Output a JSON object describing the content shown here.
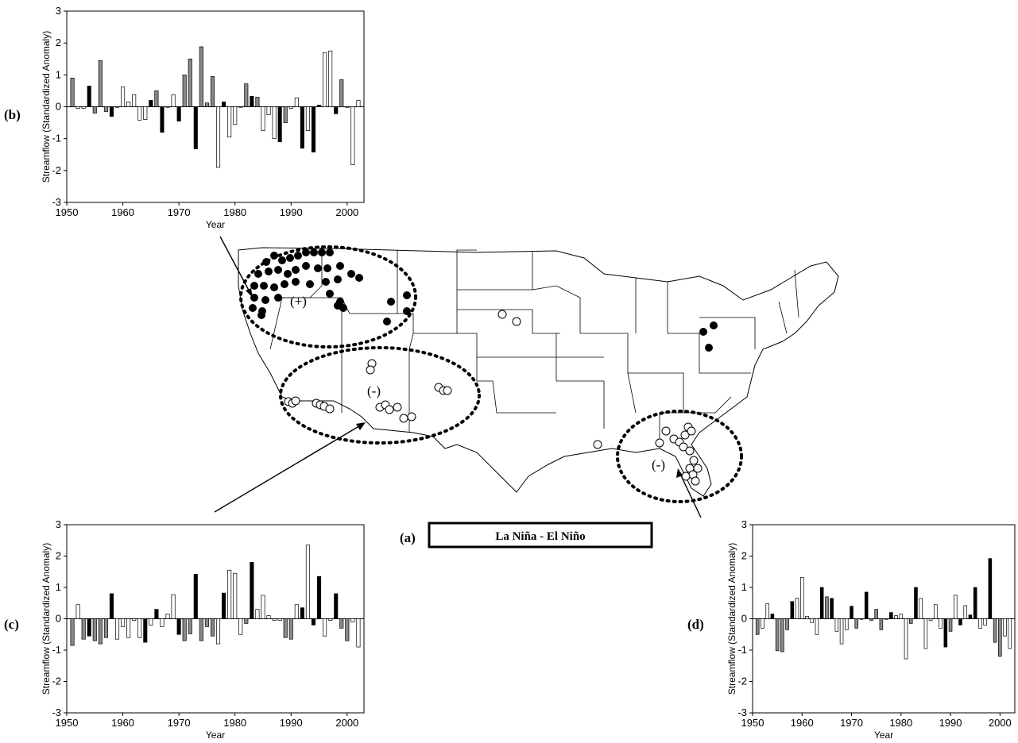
{
  "figure": {
    "legend_box_label": "La Niña - El Niño",
    "panel_a_label": "(a)",
    "region_nw_label": "(+)",
    "region_sw_label": "(-)",
    "region_se_label": "(-)",
    "colors": {
      "black_bar": "#000000",
      "gray_bar": "#8a8a8a",
      "white_bar": "#ffffff",
      "dots": "#000000"
    },
    "stations_note": ""
  },
  "chart_data": [
    {
      "type": "bar",
      "panel_label": "(b)",
      "xlabel": "Year",
      "ylabel": "Streamflow (Standardized Anomaly)",
      "xlim": [
        1950,
        2003
      ],
      "ylim": [
        -3,
        3
      ],
      "xticks": [
        1950,
        1960,
        1970,
        1980,
        1990,
        2000
      ],
      "yticks": [
        -3,
        -2,
        -1,
        0,
        1,
        2,
        3
      ],
      "series": [
        {
          "name": "",
          "x": [
            1951,
            1952,
            1953,
            1954,
            1955,
            1956,
            1957,
            1958,
            1959,
            1960,
            1961,
            1962,
            1963,
            1964,
            1965,
            1966,
            1967,
            1968,
            1969,
            1970,
            1971,
            1972,
            1973,
            1974,
            1975,
            1976,
            1977,
            1978,
            1979,
            1980,
            1981,
            1982,
            1983,
            1984,
            1985,
            1986,
            1987,
            1988,
            1989,
            1990,
            1991,
            1992,
            1993,
            1994,
            1995,
            1996,
            1997,
            1998,
            1999,
            2000,
            2001,
            2002
          ],
          "values": [
            0.9,
            -0.05,
            -0.05,
            0.65,
            -0.2,
            1.45,
            -0.15,
            -0.3,
            0,
            0.62,
            0.15,
            0.38,
            -0.42,
            -0.4,
            0.2,
            0.5,
            -0.8,
            0,
            0.38,
            -0.45,
            1.0,
            1.5,
            -1.32,
            1.88,
            0.12,
            0.95,
            -1.9,
            0.15,
            -0.95,
            -0.55,
            0,
            0.72,
            0.33,
            0.3,
            -0.75,
            -0.25,
            -1.0,
            -1.1,
            -0.5,
            -0.05,
            0.28,
            -1.3,
            -0.75,
            -1.42,
            0.05,
            1.7,
            1.75,
            -0.22,
            0.85,
            0,
            -1.82,
            0.2
          ],
          "fills": [
            "g",
            "w",
            "w",
            "b",
            "g",
            "g",
            "g",
            "b",
            "w",
            "w",
            "w",
            "w",
            "w",
            "w",
            "b",
            "g",
            "b",
            "w",
            "w",
            "b",
            "g",
            "g",
            "b",
            "g",
            "g",
            "g",
            "w",
            "b",
            "w",
            "w",
            "w",
            "g",
            "b",
            "g",
            "w",
            "w",
            "w",
            "b",
            "g",
            "w",
            "w",
            "b",
            "w",
            "b",
            "b",
            "w",
            "w",
            "b",
            "g",
            "w",
            "w",
            "w"
          ]
        }
      ]
    },
    {
      "type": "bar",
      "panel_label": "(c)",
      "xlabel": "Year",
      "ylabel": "Streamflow (Standardized Anomaly)",
      "xlim": [
        1950,
        2003
      ],
      "ylim": [
        -3,
        3
      ],
      "xticks": [
        1950,
        1960,
        1970,
        1980,
        1990,
        2000
      ],
      "yticks": [
        -3,
        -2,
        -1,
        0,
        1,
        2,
        3
      ],
      "series": [
        {
          "name": "",
          "x": [
            1951,
            1952,
            1953,
            1954,
            1955,
            1956,
            1957,
            1958,
            1959,
            1960,
            1961,
            1962,
            1963,
            1964,
            1965,
            1966,
            1967,
            1968,
            1969,
            1970,
            1971,
            1972,
            1973,
            1974,
            1975,
            1976,
            1977,
            1978,
            1979,
            1980,
            1981,
            1982,
            1983,
            1984,
            1985,
            1986,
            1987,
            1988,
            1989,
            1990,
            1991,
            1992,
            1993,
            1994,
            1995,
            1996,
            1997,
            1998,
            1999,
            2000,
            2001,
            2002
          ],
          "values": [
            -0.85,
            0.45,
            -0.65,
            -0.55,
            -0.7,
            -0.8,
            -0.6,
            0.8,
            -0.65,
            -0.25,
            -0.6,
            -0.05,
            -0.6,
            -0.75,
            -0.2,
            0.3,
            -0.25,
            0.15,
            0.77,
            -0.5,
            -0.7,
            -0.48,
            1.42,
            -0.7,
            -0.25,
            -0.55,
            -0.8,
            0.82,
            1.55,
            1.45,
            -0.5,
            -0.15,
            1.8,
            0.3,
            0.75,
            0.1,
            -0.05,
            -0.05,
            -0.6,
            -0.65,
            0.45,
            0.35,
            2.35,
            -0.2,
            1.35,
            -0.55,
            -0.05,
            0.8,
            -0.3,
            -0.7,
            -0.1,
            -0.9
          ],
          "fills": [
            "g",
            "w",
            "g",
            "b",
            "g",
            "g",
            "g",
            "b",
            "w",
            "w",
            "w",
            "w",
            "w",
            "b",
            "w",
            "b",
            "w",
            "w",
            "w",
            "b",
            "g",
            "g",
            "b",
            "g",
            "g",
            "g",
            "w",
            "b",
            "w",
            "w",
            "w",
            "g",
            "b",
            "w",
            "w",
            "w",
            "w",
            "w",
            "g",
            "g",
            "w",
            "b",
            "w",
            "b",
            "b",
            "w",
            "w",
            "b",
            "g",
            "g",
            "w",
            "w"
          ]
        }
      ]
    },
    {
      "type": "bar",
      "panel_label": "(d)",
      "xlabel": "Year",
      "ylabel": "Streamflow (Standardized Anomaly)",
      "xlim": [
        1950,
        2003
      ],
      "ylim": [
        -3,
        3
      ],
      "xticks": [
        1950,
        1960,
        1970,
        1980,
        1990,
        2000
      ],
      "yticks": [
        -3,
        -2,
        -1,
        0,
        1,
        2,
        3
      ],
      "series": [
        {
          "name": "",
          "x": [
            1951,
            1952,
            1953,
            1954,
            1955,
            1956,
            1957,
            1958,
            1959,
            1960,
            1961,
            1962,
            1963,
            1964,
            1965,
            1966,
            1967,
            1968,
            1969,
            1970,
            1971,
            1972,
            1973,
            1974,
            1975,
            1976,
            1977,
            1978,
            1979,
            1980,
            1981,
            1982,
            1983,
            1984,
            1985,
            1986,
            1987,
            1988,
            1989,
            1990,
            1991,
            1992,
            1993,
            1994,
            1995,
            1996,
            1997,
            1998,
            1999,
            2000,
            2001,
            2002
          ],
          "values": [
            -0.5,
            -0.3,
            0.48,
            0.15,
            -1.02,
            -1.05,
            -0.35,
            0.55,
            0.65,
            1.32,
            0.08,
            -0.12,
            -0.5,
            1.0,
            0.7,
            0.65,
            -0.4,
            -0.8,
            -0.35,
            0.4,
            -0.3,
            0,
            0.85,
            -0.05,
            0.3,
            -0.35,
            0,
            0.2,
            0.1,
            0.15,
            -1.28,
            -0.15,
            1.0,
            0.65,
            -0.95,
            -0.05,
            0.45,
            -0.3,
            -0.9,
            -0.4,
            0.75,
            -0.2,
            0.42,
            0.12,
            1.0,
            -0.3,
            -0.2,
            1.92,
            -0.75,
            -1.2,
            -0.55,
            -0.95
          ],
          "fills": [
            "g",
            "w",
            "w",
            "b",
            "g",
            "g",
            "g",
            "b",
            "w",
            "w",
            "w",
            "w",
            "w",
            "b",
            "g",
            "b",
            "w",
            "w",
            "w",
            "b",
            "g",
            "g",
            "b",
            "g",
            "g",
            "g",
            "w",
            "b",
            "w",
            "w",
            "w",
            "g",
            "b",
            "w",
            "w",
            "w",
            "w",
            "w",
            "b",
            "g",
            "w",
            "b",
            "w",
            "b",
            "b",
            "w",
            "w",
            "b",
            "g",
            "g",
            "w",
            "w"
          ]
        }
      ]
    }
  ]
}
